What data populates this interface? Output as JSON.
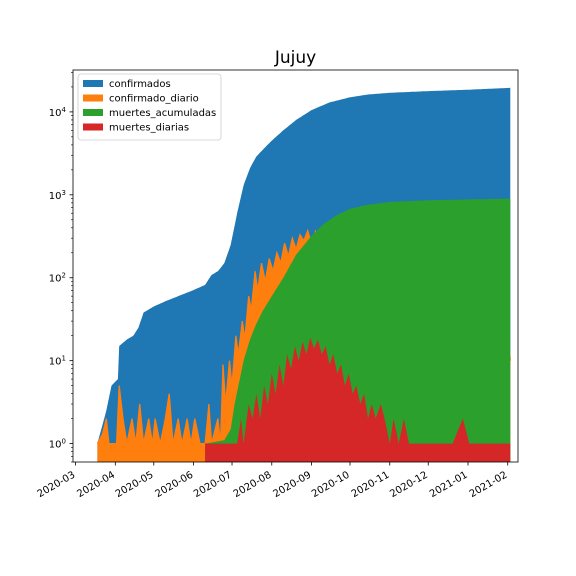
{
  "chart_data": {
    "type": "area",
    "title": "Jujuy",
    "xlabel": "",
    "ylabel": "",
    "yscale": "log",
    "ylim": [
      0.6,
      32000
    ],
    "xlim": [
      "2020-02-28",
      "2021-02-09"
    ],
    "x_ticks": [
      "2020-03",
      "2020-04",
      "2020-05",
      "2020-06",
      "2020-07",
      "2020-08",
      "2020-09",
      "2020-10",
      "2020-11",
      "2020-12",
      "2021-01",
      "2021-02"
    ],
    "y_ticks": [
      {
        "value": 1,
        "base": "10",
        "exp": "0"
      },
      {
        "value": 10,
        "base": "10",
        "exp": "1"
      },
      {
        "value": 100,
        "base": "10",
        "exp": "2"
      },
      {
        "value": 1000,
        "base": "10",
        "exp": "3"
      },
      {
        "value": 10000,
        "base": "10",
        "exp": "4"
      }
    ],
    "legend_position": "upper-left",
    "grid": false,
    "series": [
      {
        "name": "confirmados",
        "color": "#1f77b4",
        "kind": "area",
        "points": [
          [
            "2020-03-18",
            1
          ],
          [
            "2020-03-25",
            2.5
          ],
          [
            "2020-03-29",
            5
          ],
          [
            "2020-04-03",
            6
          ],
          [
            "2020-04-04",
            15
          ],
          [
            "2020-04-10",
            18
          ],
          [
            "2020-04-15",
            20
          ],
          [
            "2020-04-19",
            25
          ],
          [
            "2020-04-23",
            38
          ],
          [
            "2020-05-01",
            45
          ],
          [
            "2020-05-10",
            52
          ],
          [
            "2020-05-20",
            60
          ],
          [
            "2020-05-31",
            70
          ],
          [
            "2020-06-10",
            82
          ],
          [
            "2020-06-15",
            108
          ],
          [
            "2020-06-20",
            120
          ],
          [
            "2020-06-25",
            150
          ],
          [
            "2020-06-30",
            250
          ],
          [
            "2020-07-05",
            600
          ],
          [
            "2020-07-10",
            1300
          ],
          [
            "2020-07-15",
            2100
          ],
          [
            "2020-07-20",
            2900
          ],
          [
            "2020-07-25",
            3500
          ],
          [
            "2020-08-01",
            4500
          ],
          [
            "2020-08-10",
            6000
          ],
          [
            "2020-08-20",
            8000
          ],
          [
            "2020-09-01",
            10500
          ],
          [
            "2020-09-15",
            13000
          ],
          [
            "2020-10-01",
            15000
          ],
          [
            "2020-10-15",
            16200
          ],
          [
            "2020-11-01",
            17000
          ],
          [
            "2020-12-01",
            17800
          ],
          [
            "2021-01-01",
            18500
          ],
          [
            "2021-02-03",
            19500
          ]
        ]
      },
      {
        "name": "confirmado_diario",
        "color": "#ff7f0e",
        "kind": "area",
        "points": [
          [
            "2020-03-18",
            1
          ],
          [
            "2020-03-22",
            1.3
          ],
          [
            "2020-03-25",
            2
          ],
          [
            "2020-03-27",
            1
          ],
          [
            "2020-04-02",
            1
          ],
          [
            "2020-04-04",
            5
          ],
          [
            "2020-04-07",
            2
          ],
          [
            "2020-04-10",
            1
          ],
          [
            "2020-04-14",
            2
          ],
          [
            "2020-04-17",
            1
          ],
          [
            "2020-04-20",
            3
          ],
          [
            "2020-04-23",
            1
          ],
          [
            "2020-04-27",
            2
          ],
          [
            "2020-04-30",
            1
          ],
          [
            "2020-05-02",
            2
          ],
          [
            "2020-05-06",
            1
          ],
          [
            "2020-05-10",
            2
          ],
          [
            "2020-05-13",
            4
          ],
          [
            "2020-05-16",
            1
          ],
          [
            "2020-05-20",
            2
          ],
          [
            "2020-05-23",
            1
          ],
          [
            "2020-05-27",
            2
          ],
          [
            "2020-05-30",
            1
          ],
          [
            "2020-06-02",
            2
          ],
          [
            "2020-06-06",
            1
          ],
          [
            "2020-06-10",
            1
          ],
          [
            "2020-06-13",
            3
          ],
          [
            "2020-06-15",
            1
          ],
          [
            "2020-06-20",
            2
          ],
          [
            "2020-06-22",
            1
          ],
          [
            "2020-06-24",
            9
          ],
          [
            "2020-06-26",
            3
          ],
          [
            "2020-06-29",
            10
          ],
          [
            "2020-07-01",
            5
          ],
          [
            "2020-07-04",
            20
          ],
          [
            "2020-07-06",
            12
          ],
          [
            "2020-07-09",
            30
          ],
          [
            "2020-07-11",
            18
          ],
          [
            "2020-07-14",
            60
          ],
          [
            "2020-07-16",
            40
          ],
          [
            "2020-07-19",
            120
          ],
          [
            "2020-07-21",
            70
          ],
          [
            "2020-07-24",
            150
          ],
          [
            "2020-07-27",
            90
          ],
          [
            "2020-07-30",
            170
          ],
          [
            "2020-08-02",
            120
          ],
          [
            "2020-08-05",
            200
          ],
          [
            "2020-08-08",
            150
          ],
          [
            "2020-08-11",
            260
          ],
          [
            "2020-08-14",
            180
          ],
          [
            "2020-08-17",
            300
          ],
          [
            "2020-08-20",
            220
          ],
          [
            "2020-08-23",
            330
          ],
          [
            "2020-08-26",
            280
          ],
          [
            "2020-08-29",
            370
          ],
          [
            "2020-09-01",
            260
          ],
          [
            "2020-09-04",
            360
          ],
          [
            "2020-09-07",
            240
          ],
          [
            "2020-09-10",
            300
          ],
          [
            "2020-09-13",
            200
          ],
          [
            "2020-09-16",
            230
          ],
          [
            "2020-09-19",
            150
          ],
          [
            "2020-09-22",
            170
          ],
          [
            "2020-09-25",
            110
          ],
          [
            "2020-09-28",
            100
          ],
          [
            "2020-10-01",
            60
          ],
          [
            "2020-10-04",
            80
          ],
          [
            "2020-10-07",
            40
          ],
          [
            "2020-10-10",
            45
          ],
          [
            "2020-10-13",
            25
          ],
          [
            "2020-10-16",
            55
          ],
          [
            "2020-10-19",
            20
          ],
          [
            "2020-10-22",
            30
          ],
          [
            "2020-10-25",
            12
          ],
          [
            "2020-10-28",
            20
          ],
          [
            "2020-10-31",
            8
          ],
          [
            "2020-11-03",
            10
          ],
          [
            "2020-11-06",
            3
          ],
          [
            "2020-11-09",
            6
          ],
          [
            "2020-11-12",
            2
          ],
          [
            "2020-11-15",
            4
          ],
          [
            "2020-11-18",
            2
          ],
          [
            "2020-11-21",
            5
          ],
          [
            "2020-11-24",
            2
          ],
          [
            "2020-11-27",
            4
          ],
          [
            "2020-11-30",
            2
          ],
          [
            "2020-12-03",
            6
          ],
          [
            "2020-12-06",
            3
          ],
          [
            "2020-12-09",
            1
          ],
          [
            "2020-12-12",
            5
          ],
          [
            "2020-12-15",
            3
          ],
          [
            "2020-12-18",
            4
          ],
          [
            "2020-12-21",
            3
          ],
          [
            "2020-12-24",
            5
          ],
          [
            "2020-12-27",
            10
          ],
          [
            "2020-12-30",
            4
          ],
          [
            "2021-01-02",
            15
          ],
          [
            "2021-01-05",
            6
          ],
          [
            "2021-01-08",
            10
          ],
          [
            "2021-01-11",
            30
          ],
          [
            "2021-01-14",
            8
          ],
          [
            "2021-01-17",
            20
          ],
          [
            "2021-01-20",
            12
          ],
          [
            "2021-01-23",
            48
          ],
          [
            "2021-01-26",
            20
          ],
          [
            "2021-01-29",
            40
          ],
          [
            "2021-02-01",
            25
          ],
          [
            "2021-02-03",
            10
          ]
        ]
      },
      {
        "name": "muertes_acumuladas",
        "color": "#2ca02c",
        "kind": "area",
        "points": [
          [
            "2020-06-10",
            1
          ],
          [
            "2020-06-25",
            1.1
          ],
          [
            "2020-06-30",
            1.5
          ],
          [
            "2020-07-03",
            3
          ],
          [
            "2020-07-06",
            5
          ],
          [
            "2020-07-10",
            10
          ],
          [
            "2020-07-15",
            18
          ],
          [
            "2020-07-20",
            28
          ],
          [
            "2020-07-25",
            40
          ],
          [
            "2020-08-01",
            60
          ],
          [
            "2020-08-10",
            100
          ],
          [
            "2020-08-20",
            190
          ],
          [
            "2020-09-01",
            320
          ],
          [
            "2020-09-10",
            440
          ],
          [
            "2020-09-20",
            560
          ],
          [
            "2020-10-01",
            680
          ],
          [
            "2020-10-15",
            760
          ],
          [
            "2020-11-01",
            820
          ],
          [
            "2020-12-01",
            860
          ],
          [
            "2021-01-01",
            880
          ],
          [
            "2021-02-03",
            900
          ]
        ]
      },
      {
        "name": "muertes_diarias",
        "color": "#d62728",
        "kind": "area",
        "points": [
          [
            "2020-06-10",
            1
          ],
          [
            "2020-07-05",
            1
          ],
          [
            "2020-07-08",
            2
          ],
          [
            "2020-07-10",
            1
          ],
          [
            "2020-07-14",
            3
          ],
          [
            "2020-07-17",
            2
          ],
          [
            "2020-07-20",
            4
          ],
          [
            "2020-07-23",
            2
          ],
          [
            "2020-07-26",
            5
          ],
          [
            "2020-07-29",
            3
          ],
          [
            "2020-08-01",
            7
          ],
          [
            "2020-08-04",
            4
          ],
          [
            "2020-08-07",
            9
          ],
          [
            "2020-08-10",
            5
          ],
          [
            "2020-08-13",
            12
          ],
          [
            "2020-08-16",
            8
          ],
          [
            "2020-08-19",
            15
          ],
          [
            "2020-08-22",
            10
          ],
          [
            "2020-08-25",
            17
          ],
          [
            "2020-08-28",
            12
          ],
          [
            "2020-08-31",
            19
          ],
          [
            "2020-09-03",
            14
          ],
          [
            "2020-09-06",
            18
          ],
          [
            "2020-09-09",
            12
          ],
          [
            "2020-09-12",
            15
          ],
          [
            "2020-09-15",
            9
          ],
          [
            "2020-09-18",
            12
          ],
          [
            "2020-09-21",
            7
          ],
          [
            "2020-09-24",
            9
          ],
          [
            "2020-09-27",
            5
          ],
          [
            "2020-09-30",
            7
          ],
          [
            "2020-10-03",
            4
          ],
          [
            "2020-10-06",
            5
          ],
          [
            "2020-10-09",
            3
          ],
          [
            "2020-10-12",
            4
          ],
          [
            "2020-10-15",
            2
          ],
          [
            "2020-10-18",
            3
          ],
          [
            "2020-10-21",
            2
          ],
          [
            "2020-10-25",
            3
          ],
          [
            "2020-10-28",
            2
          ],
          [
            "2020-11-01",
            1
          ],
          [
            "2020-11-04",
            2
          ],
          [
            "2020-11-08",
            1
          ],
          [
            "2020-11-12",
            2
          ],
          [
            "2020-11-16",
            1
          ],
          [
            "2020-11-25",
            1
          ],
          [
            "2020-12-05",
            1
          ],
          [
            "2020-12-20",
            1
          ],
          [
            "2020-12-28",
            2
          ],
          [
            "2021-01-02",
            1
          ],
          [
            "2021-02-03",
            1
          ]
        ]
      }
    ]
  }
}
